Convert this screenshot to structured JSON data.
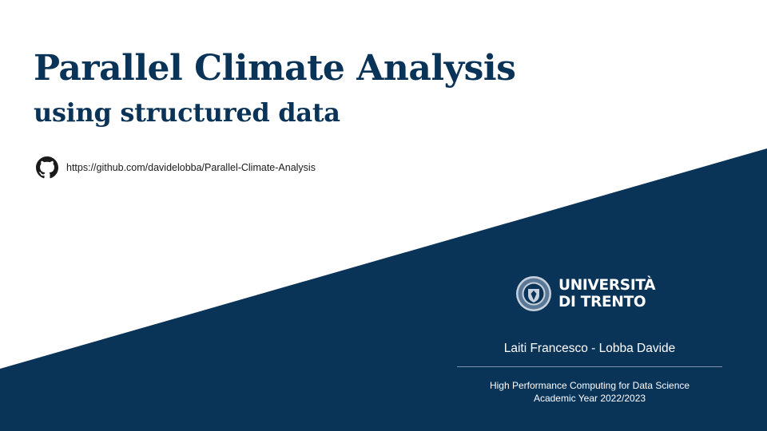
{
  "slide": {
    "title": "Parallel Climate Analysis",
    "subtitle": "using structured data",
    "repo_url": "https://github.com/davidelobba/Parallel-Climate-Analysis",
    "repo_icon": "github-icon",
    "university": {
      "line1": "UNIVERSITÀ",
      "line2": "DI TRENTO",
      "seal_icon": "university-seal-icon"
    },
    "authors": "Laiti Francesco - Lobba Davide",
    "course": "High Performance Computing for Data Science",
    "academic_year": "Academic Year 2022/2023"
  },
  "colors": {
    "navy": "#0a3358",
    "background": "#ffffff",
    "text_dark": "#1a1a1a"
  }
}
